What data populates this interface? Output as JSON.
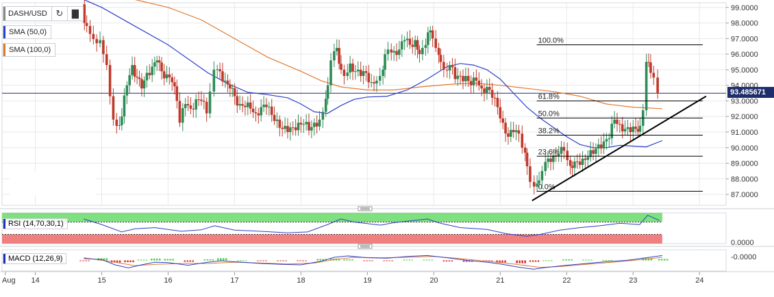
{
  "symbol": "DASH/USD",
  "toolbar": {
    "refresh_icon": "refresh-icon",
    "bars_icon": "bar-chart-icon"
  },
  "indicators": {
    "sma50": {
      "label": "SMA (50,0)",
      "color": "#2b3ec7"
    },
    "sma100": {
      "label": "SMA (100,0)",
      "color": "#e07a2e"
    },
    "rsi": {
      "label": "RSI (14,70,30,1)",
      "color": "#2b3ec7",
      "axis_label": "0.0000"
    },
    "macd": {
      "label": "MACD (12,26,9)",
      "color": "#2b3ec7",
      "axis_label": "-0.0000"
    }
  },
  "current_price": "93.485671",
  "colors": {
    "up": "#2e8b57",
    "down": "#c0392b",
    "grid": "#e6e8eb",
    "rsi_overbought": "#7fe07f",
    "rsi_oversold": "#f08080",
    "trendline": "#000000"
  },
  "chart_data": {
    "type": "candlestick",
    "ylim": [
      86.3,
      99.3
    ],
    "y_ticks": [
      "99.0000",
      "98.0000",
      "97.0000",
      "96.0000",
      "95.0000",
      "94.0000",
      "93.0000",
      "92.0000",
      "91.0000",
      "90.0000",
      "89.0000",
      "88.0000",
      "87.0000"
    ],
    "x_ticks": [
      {
        "label": "Aug",
        "pos": 13.55
      },
      {
        "label": "14",
        "pos": 14
      },
      {
        "label": "15",
        "pos": 15
      },
      {
        "label": "16",
        "pos": 16
      },
      {
        "label": "17",
        "pos": 17
      },
      {
        "label": "18",
        "pos": 18
      },
      {
        "label": "19",
        "pos": 19
      },
      {
        "label": "20",
        "pos": 20
      },
      {
        "label": "21",
        "pos": 21
      },
      {
        "label": "22",
        "pos": 22
      },
      {
        "label": "23",
        "pos": 23
      },
      {
        "label": "24",
        "pos": 24
      }
    ],
    "xlim": [
      13.5,
      24.4
    ],
    "close_path": [
      [
        14.73,
        99.2
      ],
      [
        14.75,
        98.0
      ],
      [
        14.85,
        97.3
      ],
      [
        14.95,
        96.7
      ],
      [
        15.0,
        96.9
      ],
      [
        15.05,
        96.0
      ],
      [
        15.1,
        95.3
      ],
      [
        15.15,
        93.3
      ],
      [
        15.2,
        91.8
      ],
      [
        15.25,
        91.4
      ],
      [
        15.32,
        92.0
      ],
      [
        15.4,
        94.0
      ],
      [
        15.48,
        95.3
      ],
      [
        15.55,
        94.5
      ],
      [
        15.62,
        93.8
      ],
      [
        15.7,
        94.8
      ],
      [
        15.78,
        95.2
      ],
      [
        15.85,
        95.6
      ],
      [
        15.92,
        94.9
      ],
      [
        16.0,
        94.7
      ],
      [
        16.08,
        94.2
      ],
      [
        16.15,
        93.0
      ],
      [
        16.2,
        91.6
      ],
      [
        16.28,
        92.8
      ],
      [
        16.36,
        92.5
      ],
      [
        16.44,
        93.1
      ],
      [
        16.52,
        93.0
      ],
      [
        16.6,
        92.2
      ],
      [
        16.66,
        93.6
      ],
      [
        16.72,
        95.0
      ],
      [
        16.8,
        94.9
      ],
      [
        16.88,
        94.3
      ],
      [
        16.95,
        93.8
      ],
      [
        17.02,
        93.3
      ],
      [
        17.1,
        92.8
      ],
      [
        17.18,
        92.6
      ],
      [
        17.26,
        92.5
      ],
      [
        17.34,
        92.2
      ],
      [
        17.42,
        92.6
      ],
      [
        17.5,
        92.6
      ],
      [
        17.58,
        92.1
      ],
      [
        17.66,
        91.8
      ],
      [
        17.74,
        91.2
      ],
      [
        17.82,
        91.0
      ],
      [
        17.9,
        91.3
      ],
      [
        17.98,
        91.6
      ],
      [
        18.06,
        91.5
      ],
      [
        18.14,
        91.1
      ],
      [
        18.22,
        91.6
      ],
      [
        18.3,
        91.8
      ],
      [
        18.36,
        92.3
      ],
      [
        18.42,
        94.0
      ],
      [
        18.48,
        95.6
      ],
      [
        18.56,
        96.4
      ],
      [
        18.62,
        95.0
      ],
      [
        18.68,
        94.6
      ],
      [
        18.76,
        95.4
      ],
      [
        18.84,
        94.9
      ],
      [
        18.92,
        94.6
      ],
      [
        19.0,
        94.8
      ],
      [
        19.08,
        94.2
      ],
      [
        19.16,
        94.3
      ],
      [
        19.22,
        94.6
      ],
      [
        19.28,
        96.0
      ],
      [
        19.34,
        96.3
      ],
      [
        19.42,
        96.2
      ],
      [
        19.5,
        96.3
      ],
      [
        19.58,
        96.9
      ],
      [
        19.66,
        96.6
      ],
      [
        19.74,
        96.9
      ],
      [
        19.8,
        96.0
      ],
      [
        19.86,
        96.4
      ],
      [
        19.93,
        97.4
      ],
      [
        20.0,
        97.0
      ],
      [
        20.06,
        96.4
      ],
      [
        20.12,
        95.5
      ],
      [
        20.18,
        95.0
      ],
      [
        20.26,
        95.3
      ],
      [
        20.34,
        94.4
      ],
      [
        20.42,
        94.6
      ],
      [
        20.5,
        94.6
      ],
      [
        20.58,
        94.0
      ],
      [
        20.66,
        94.3
      ],
      [
        20.74,
        93.8
      ],
      [
        20.82,
        93.9
      ],
      [
        20.9,
        93.2
      ],
      [
        20.98,
        92.6
      ],
      [
        21.06,
        91.6
      ],
      [
        21.14,
        90.7
      ],
      [
        21.22,
        91.0
      ],
      [
        21.3,
        90.9
      ],
      [
        21.36,
        90.0
      ],
      [
        21.42,
        88.8
      ],
      [
        21.48,
        87.8
      ],
      [
        21.54,
        87.5
      ],
      [
        21.6,
        87.9
      ],
      [
        21.66,
        88.5
      ],
      [
        21.74,
        89.3
      ],
      [
        21.82,
        89.5
      ],
      [
        21.9,
        89.6
      ],
      [
        21.98,
        89.8
      ],
      [
        22.04,
        89.2
      ],
      [
        22.1,
        88.7
      ],
      [
        22.18,
        89.1
      ],
      [
        22.26,
        89.3
      ],
      [
        22.34,
        89.4
      ],
      [
        22.42,
        89.6
      ],
      [
        22.5,
        90.2
      ],
      [
        22.58,
        90.4
      ],
      [
        22.66,
        90.6
      ],
      [
        22.74,
        91.8
      ],
      [
        22.82,
        91.5
      ],
      [
        22.9,
        91.2
      ],
      [
        22.98,
        91.0
      ],
      [
        23.06,
        91.2
      ],
      [
        23.12,
        91.4
      ],
      [
        23.18,
        92.4
      ],
      [
        23.22,
        95.5
      ],
      [
        23.28,
        94.8
      ],
      [
        23.34,
        94.5
      ],
      [
        23.4,
        93.49
      ]
    ],
    "sma50": [
      [
        14.73,
        99.5
      ],
      [
        15.0,
        99.0
      ],
      [
        15.5,
        97.8
      ],
      [
        16.0,
        96.6
      ],
      [
        16.3,
        95.7
      ],
      [
        16.6,
        94.8
      ],
      [
        16.9,
        94.1
      ],
      [
        17.2,
        93.55
      ],
      [
        17.5,
        93.4
      ],
      [
        17.8,
        93.2
      ],
      [
        18.0,
        92.8
      ],
      [
        18.2,
        92.3
      ],
      [
        18.4,
        92.2
      ],
      [
        18.6,
        92.7
      ],
      [
        18.8,
        93.1
      ],
      [
        19.0,
        93.25
      ],
      [
        19.3,
        93.3
      ],
      [
        19.6,
        93.7
      ],
      [
        19.9,
        94.4
      ],
      [
        20.2,
        95.2
      ],
      [
        20.4,
        95.4
      ],
      [
        20.6,
        95.3
      ],
      [
        20.8,
        95.0
      ],
      [
        21.0,
        94.4
      ],
      [
        21.2,
        93.5
      ],
      [
        21.4,
        92.6
      ],
      [
        21.6,
        91.9
      ],
      [
        21.8,
        91.3
      ],
      [
        22.0,
        90.7
      ],
      [
        22.2,
        90.2
      ],
      [
        22.4,
        90.0
      ],
      [
        22.6,
        90.0
      ],
      [
        22.8,
        90.15
      ],
      [
        23.0,
        90.1
      ],
      [
        23.2,
        90.05
      ],
      [
        23.44,
        90.45
      ]
    ],
    "sma100": [
      [
        15.5,
        99.5
      ],
      [
        16.0,
        99.0
      ],
      [
        16.5,
        98.2
      ],
      [
        17.0,
        97.0
      ],
      [
        17.5,
        95.8
      ],
      [
        18.0,
        94.9
      ],
      [
        18.3,
        94.3
      ],
      [
        18.6,
        93.9
      ],
      [
        19.0,
        93.7
      ],
      [
        19.4,
        93.7
      ],
      [
        19.8,
        93.9
      ],
      [
        20.2,
        94.05
      ],
      [
        20.6,
        94.15
      ],
      [
        21.0,
        94.0
      ],
      [
        21.4,
        93.8
      ],
      [
        21.8,
        93.6
      ],
      [
        22.2,
        93.3
      ],
      [
        22.6,
        92.8
      ],
      [
        23.0,
        92.6
      ],
      [
        23.44,
        92.5
      ]
    ],
    "fibonacci": [
      {
        "label": "100.0%",
        "value": 96.6
      },
      {
        "label": "61.8%",
        "value": 93.0
      },
      {
        "label": "50.0%",
        "value": 91.9
      },
      {
        "label": "38.2%",
        "value": 90.8
      },
      {
        "label": "23.6%",
        "value": 89.45
      },
      {
        "label": "0.0%",
        "value": 87.2
      }
    ],
    "trendline": [
      [
        21.48,
        86.6
      ],
      [
        24.1,
        93.3
      ]
    ],
    "current_price": 93.49,
    "rsi": [
      [
        14.73,
        80
      ],
      [
        15.0,
        62
      ],
      [
        15.3,
        38
      ],
      [
        15.5,
        48
      ],
      [
        15.8,
        52
      ],
      [
        16.2,
        40
      ],
      [
        16.5,
        45
      ],
      [
        16.7,
        58
      ],
      [
        17.0,
        44
      ],
      [
        17.4,
        40
      ],
      [
        17.8,
        35
      ],
      [
        18.1,
        38
      ],
      [
        18.4,
        62
      ],
      [
        18.6,
        80
      ],
      [
        18.8,
        70
      ],
      [
        19.2,
        60
      ],
      [
        19.4,
        68
      ],
      [
        19.7,
        75
      ],
      [
        19.9,
        80
      ],
      [
        20.1,
        66
      ],
      [
        20.4,
        52
      ],
      [
        20.8,
        46
      ],
      [
        21.1,
        32
      ],
      [
        21.4,
        24
      ],
      [
        21.6,
        30
      ],
      [
        21.9,
        44
      ],
      [
        22.2,
        52
      ],
      [
        22.5,
        58
      ],
      [
        22.8,
        66
      ],
      [
        23.1,
        62
      ],
      [
        23.22,
        92
      ],
      [
        23.4,
        75
      ]
    ],
    "macd": [
      [
        14.73,
        0.2
      ],
      [
        15.0,
        0.1
      ],
      [
        15.2,
        -0.5
      ],
      [
        15.4,
        -0.85
      ],
      [
        15.6,
        -0.5
      ],
      [
        15.8,
        -0.2
      ],
      [
        16.0,
        -0.25
      ],
      [
        16.3,
        -0.55
      ],
      [
        16.6,
        -0.2
      ],
      [
        16.8,
        -0.05
      ],
      [
        17.1,
        -0.2
      ],
      [
        17.4,
        -0.35
      ],
      [
        17.7,
        -0.45
      ],
      [
        18.0,
        -0.5
      ],
      [
        18.3,
        -0.1
      ],
      [
        18.5,
        0.35
      ],
      [
        18.7,
        0.5
      ],
      [
        19.0,
        0.3
      ],
      [
        19.3,
        0.25
      ],
      [
        19.6,
        0.45
      ],
      [
        19.9,
        0.55
      ],
      [
        20.2,
        0.3
      ],
      [
        20.5,
        0.0
      ],
      [
        20.8,
        -0.2
      ],
      [
        21.0,
        -0.4
      ],
      [
        21.3,
        -0.8
      ],
      [
        21.5,
        -1.0
      ],
      [
        21.7,
        -0.8
      ],
      [
        22.0,
        -0.55
      ],
      [
        22.3,
        -0.35
      ],
      [
        22.6,
        -0.15
      ],
      [
        22.9,
        0.0
      ],
      [
        23.2,
        0.3
      ],
      [
        23.44,
        0.55
      ]
    ],
    "macd_signal": [
      [
        14.73,
        0.3
      ],
      [
        15.2,
        -0.2
      ],
      [
        15.5,
        -0.6
      ],
      [
        15.8,
        -0.45
      ],
      [
        16.2,
        -0.35
      ],
      [
        16.6,
        -0.35
      ],
      [
        17.0,
        -0.2
      ],
      [
        17.4,
        -0.3
      ],
      [
        17.8,
        -0.4
      ],
      [
        18.2,
        -0.3
      ],
      [
        18.5,
        0.1
      ],
      [
        18.8,
        0.35
      ],
      [
        19.2,
        0.3
      ],
      [
        19.6,
        0.35
      ],
      [
        20.0,
        0.45
      ],
      [
        20.4,
        0.2
      ],
      [
        20.8,
        -0.1
      ],
      [
        21.2,
        -0.4
      ],
      [
        21.6,
        -0.8
      ],
      [
        21.9,
        -0.7
      ],
      [
        22.3,
        -0.45
      ],
      [
        22.7,
        -0.2
      ],
      [
        23.0,
        0.0
      ],
      [
        23.44,
        0.35
      ]
    ]
  }
}
